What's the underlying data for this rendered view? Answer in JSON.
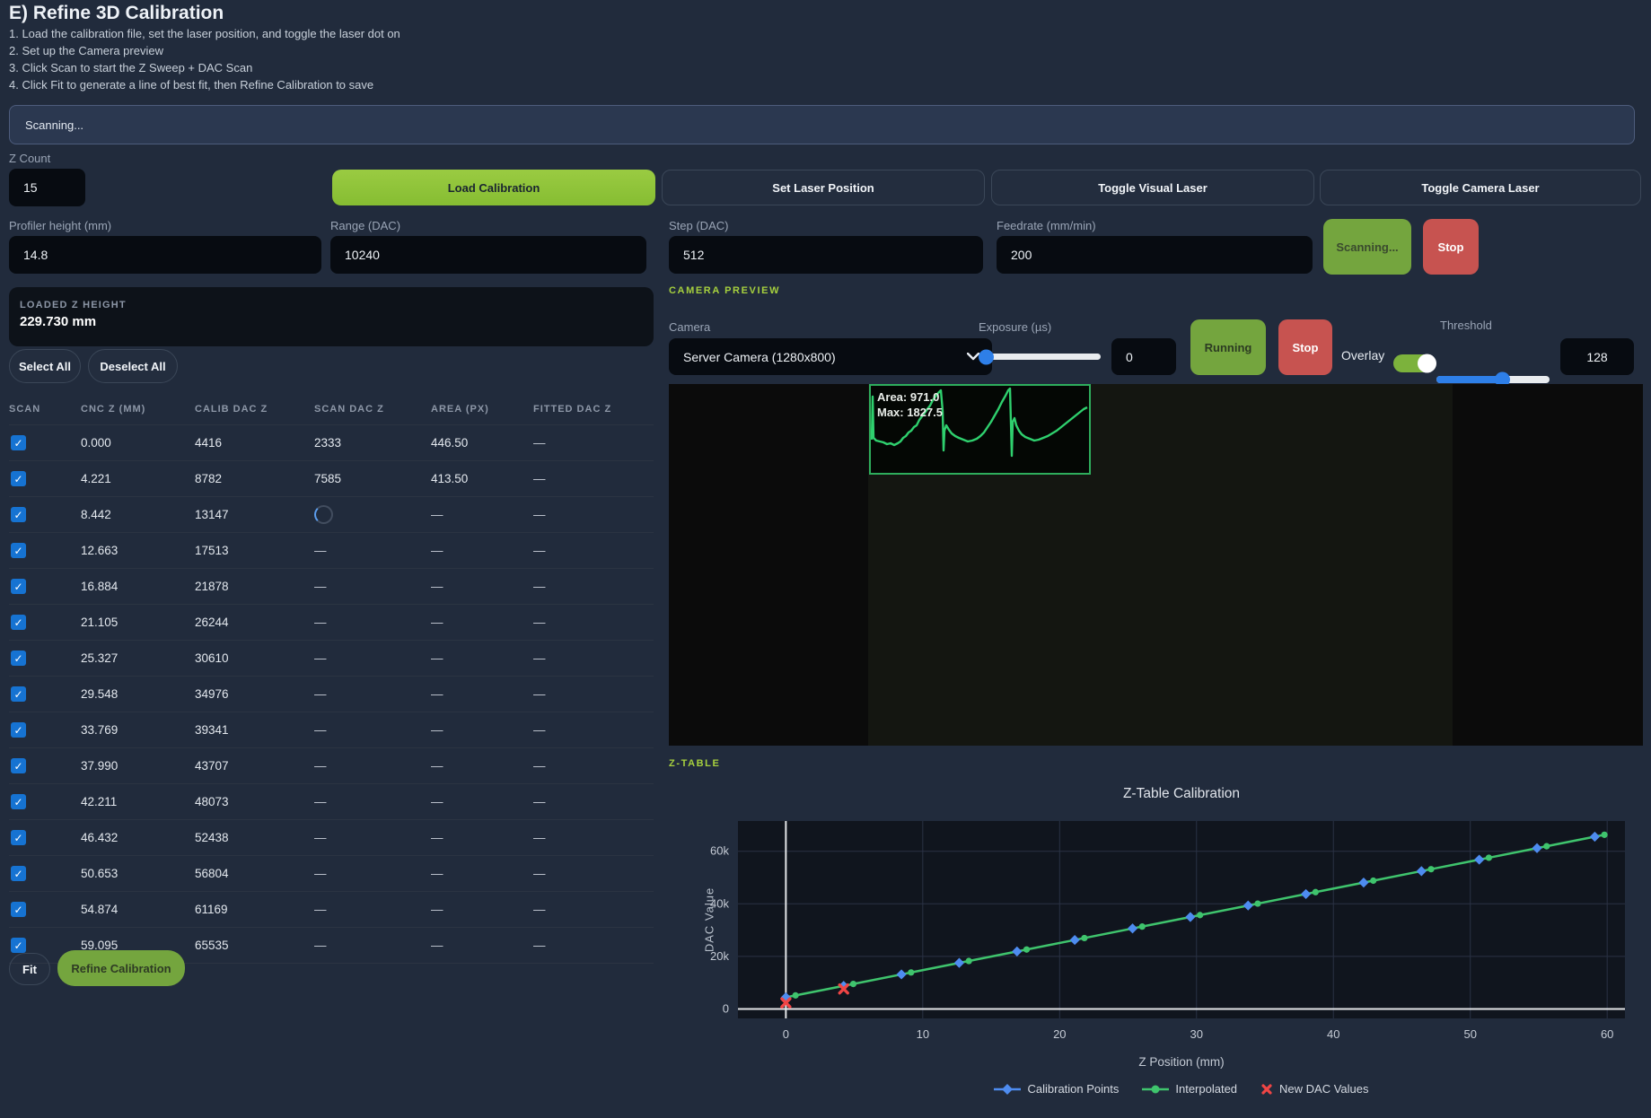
{
  "header": {
    "title": "E) Refine 3D Calibration",
    "instructions": [
      "1. Load the calibration file, set the laser position, and toggle the laser dot on",
      "2. Set up the Camera preview",
      "3. Click Scan to start the Z Sweep + DAC Scan",
      "4. Click Fit to generate a line of best fit, then Refine Calibration to save"
    ]
  },
  "status": {
    "text": "Scanning..."
  },
  "controls": {
    "z_count": {
      "label": "Z Count",
      "value": "15"
    },
    "load_calibration": "Load Calibration",
    "set_laser_position": "Set Laser Position",
    "toggle_visual_laser": "Toggle Visual Laser",
    "toggle_camera_laser": "Toggle Camera Laser",
    "profiler_height": {
      "label": "Profiler height (mm)",
      "value": "14.8"
    },
    "range_dac": {
      "label": "Range (DAC)",
      "value": "10240"
    },
    "step_dac": {
      "label": "Step (DAC)",
      "value": "512"
    },
    "feedrate": {
      "label": "Feedrate (mm/min)",
      "value": "200"
    },
    "scan_button": "Scanning...",
    "stop_button": "Stop"
  },
  "loaded_z": {
    "label": "LOADED Z HEIGHT",
    "value": "229.730 mm"
  },
  "table": {
    "select_all": "Select All",
    "deselect_all": "Deselect All",
    "columns": [
      "SCAN",
      "CNC Z (MM)",
      "CALIB DAC Z",
      "SCAN DAC Z",
      "AREA (PX)",
      "FITTED DAC Z"
    ],
    "empty_placeholder": "—",
    "rows": [
      {
        "checked": true,
        "cnc_z": "0.000",
        "calib_dac_z": "4416",
        "scan_dac_z": "2333",
        "area_px": "446.50",
        "fitted_dac_z": null
      },
      {
        "checked": true,
        "cnc_z": "4.221",
        "calib_dac_z": "8782",
        "scan_dac_z": "7585",
        "area_px": "413.50",
        "fitted_dac_z": null
      },
      {
        "checked": true,
        "cnc_z": "8.442",
        "calib_dac_z": "13147",
        "scan_dac_z": "loading",
        "area_px": null,
        "fitted_dac_z": null
      },
      {
        "checked": true,
        "cnc_z": "12.663",
        "calib_dac_z": "17513",
        "scan_dac_z": null,
        "area_px": null,
        "fitted_dac_z": null
      },
      {
        "checked": true,
        "cnc_z": "16.884",
        "calib_dac_z": "21878",
        "scan_dac_z": null,
        "area_px": null,
        "fitted_dac_z": null
      },
      {
        "checked": true,
        "cnc_z": "21.105",
        "calib_dac_z": "26244",
        "scan_dac_z": null,
        "area_px": null,
        "fitted_dac_z": null
      },
      {
        "checked": true,
        "cnc_z": "25.327",
        "calib_dac_z": "30610",
        "scan_dac_z": null,
        "area_px": null,
        "fitted_dac_z": null
      },
      {
        "checked": true,
        "cnc_z": "29.548",
        "calib_dac_z": "34976",
        "scan_dac_z": null,
        "area_px": null,
        "fitted_dac_z": null
      },
      {
        "checked": true,
        "cnc_z": "33.769",
        "calib_dac_z": "39341",
        "scan_dac_z": null,
        "area_px": null,
        "fitted_dac_z": null
      },
      {
        "checked": true,
        "cnc_z": "37.990",
        "calib_dac_z": "43707",
        "scan_dac_z": null,
        "area_px": null,
        "fitted_dac_z": null
      },
      {
        "checked": true,
        "cnc_z": "42.211",
        "calib_dac_z": "48073",
        "scan_dac_z": null,
        "area_px": null,
        "fitted_dac_z": null
      },
      {
        "checked": true,
        "cnc_z": "46.432",
        "calib_dac_z": "52438",
        "scan_dac_z": null,
        "area_px": null,
        "fitted_dac_z": null
      },
      {
        "checked": true,
        "cnc_z": "50.653",
        "calib_dac_z": "56804",
        "scan_dac_z": null,
        "area_px": null,
        "fitted_dac_z": null
      },
      {
        "checked": true,
        "cnc_z": "54.874",
        "calib_dac_z": "61169",
        "scan_dac_z": null,
        "area_px": null,
        "fitted_dac_z": null
      },
      {
        "checked": true,
        "cnc_z": "59.095",
        "calib_dac_z": "65535",
        "scan_dac_z": null,
        "area_px": null,
        "fitted_dac_z": null
      }
    ],
    "fit_button": "Fit",
    "refine_button": "Refine Calibration"
  },
  "camera": {
    "section_label": "CAMERA PREVIEW",
    "camera_label": "Camera",
    "camera_value": "Server Camera (1280x800)",
    "exposure_label": "Exposure (µs)",
    "exposure_value": "0",
    "running_button": "Running",
    "stop_button": "Stop",
    "overlay_label": "Overlay",
    "threshold_label": "Threshold",
    "threshold_value": "128",
    "overlay_info": {
      "area": "Area: 971.0",
      "max": "Max: 1827.5",
      "waveform": [
        [
          1,
          60
        ],
        [
          2,
          12
        ],
        [
          3,
          58
        ],
        [
          6,
          61
        ],
        [
          10,
          62
        ],
        [
          14,
          63
        ],
        [
          18,
          65
        ],
        [
          22,
          64
        ],
        [
          26,
          66
        ],
        [
          30,
          64
        ],
        [
          33,
          62
        ],
        [
          36,
          58
        ],
        [
          39,
          56
        ],
        [
          42,
          52
        ],
        [
          45,
          50
        ],
        [
          48,
          46
        ],
        [
          51,
          44
        ],
        [
          54,
          38
        ],
        [
          57,
          34
        ],
        [
          60,
          30
        ],
        [
          63,
          26
        ],
        [
          66,
          22
        ],
        [
          69,
          16
        ],
        [
          72,
          12
        ],
        [
          75,
          8
        ],
        [
          78,
          5
        ],
        [
          80,
          28
        ],
        [
          81,
          72
        ],
        [
          82,
          50
        ],
        [
          84,
          44
        ],
        [
          87,
          49
        ],
        [
          90,
          53
        ],
        [
          94,
          56
        ],
        [
          98,
          58
        ],
        [
          103,
          60
        ],
        [
          108,
          62
        ],
        [
          113,
          61
        ],
        [
          118,
          59
        ],
        [
          122,
          56
        ],
        [
          126,
          52
        ],
        [
          130,
          46
        ],
        [
          134,
          40
        ],
        [
          138,
          33
        ],
        [
          142,
          26
        ],
        [
          146,
          18
        ],
        [
          150,
          11
        ],
        [
          153,
          5
        ],
        [
          155,
          3
        ],
        [
          156,
          40
        ],
        [
          157,
          78
        ],
        [
          158,
          40
        ],
        [
          160,
          36
        ],
        [
          162,
          44
        ],
        [
          165,
          50
        ],
        [
          168,
          54
        ],
        [
          172,
          57
        ],
        [
          177,
          59
        ],
        [
          182,
          61
        ],
        [
          187,
          60
        ],
        [
          192,
          58
        ],
        [
          197,
          56
        ],
        [
          202,
          53
        ],
        [
          207,
          50
        ],
        [
          212,
          46
        ],
        [
          217,
          42
        ],
        [
          222,
          38
        ],
        [
          227,
          34
        ],
        [
          232,
          30
        ],
        [
          237,
          26
        ],
        [
          241,
          24
        ]
      ]
    }
  },
  "ztable": {
    "section_label": "Z-TABLE"
  },
  "colors": {
    "accent_green_bright": "#8cc33c",
    "accent_green_olive": "#74a53e",
    "danger_red": "#c75350",
    "section_green": "#a6d03e",
    "checkbox_blue": "#1673d2",
    "slider_blue": "#2e7fe8",
    "calibration_blue": "#4e8cf0",
    "interpolated_green": "#3fc46d",
    "new_dac_red": "#ef4545"
  },
  "chart_data": {
    "type": "line",
    "title": "Z-Table Calibration",
    "xlabel": "Z Position (mm)",
    "ylabel": "DAC Value",
    "xticks": [
      0,
      10,
      20,
      30,
      40,
      50,
      60
    ],
    "yticks": [
      0,
      20000,
      40000,
      60000
    ],
    "ytick_labels": [
      "0",
      "20k",
      "40k",
      "60k"
    ],
    "xlim": [
      -3.5,
      61.3
    ],
    "ylim": [
      -3600,
      71500
    ],
    "grid": true,
    "legend_position": "bottom",
    "series": [
      {
        "name": "Calibration Points",
        "marker": "diamond",
        "color": "#4e8cf0",
        "x": [
          0,
          4.221,
          8.442,
          12.663,
          16.884,
          21.105,
          25.327,
          29.548,
          33.769,
          37.99,
          42.211,
          46.432,
          50.653,
          54.874,
          59.095
        ],
        "y": [
          4416,
          8782,
          13147,
          17513,
          21878,
          26244,
          30610,
          34976,
          39341,
          43707,
          48073,
          52438,
          56804,
          61169,
          65535
        ]
      },
      {
        "name": "Interpolated",
        "marker": "circle",
        "line": true,
        "color": "#3fc46d",
        "x": [
          0,
          0.704,
          4.925,
          9.146,
          13.367,
          17.588,
          21.809,
          26.031,
          30.252,
          34.473,
          38.694,
          42.915,
          47.136,
          51.357,
          55.578,
          59.799
        ],
        "y": [
          4416,
          5144,
          9510,
          13875,
          18241,
          22606,
          26972,
          31338,
          35704,
          40069,
          44435,
          48801,
          53166,
          57532,
          61897,
          66263
        ]
      },
      {
        "name": "New DAC Values",
        "marker": "x",
        "color": "#ef4545",
        "x": [
          0,
          4.221
        ],
        "y": [
          2333,
          7585
        ]
      }
    ],
    "legend": [
      "Calibration Points",
      "Interpolated",
      "New DAC Values"
    ]
  }
}
